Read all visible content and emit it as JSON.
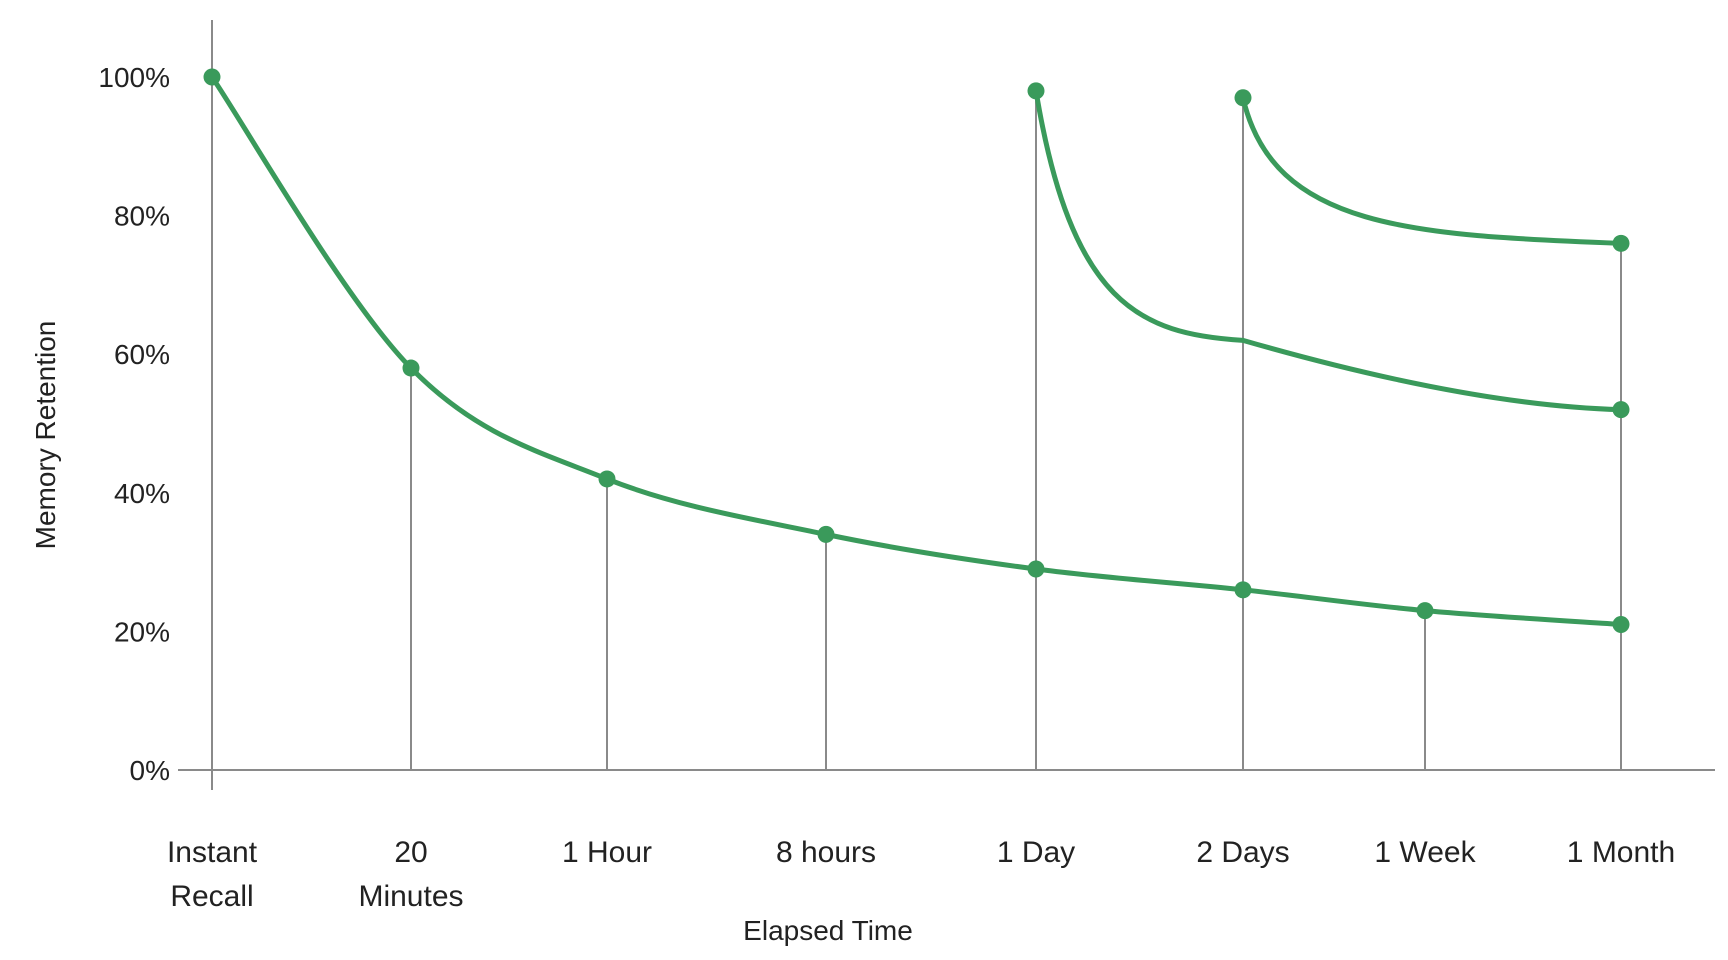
{
  "chart_data": {
    "type": "line",
    "xlabel": "Elapsed Time",
    "ylabel": "Memory Retention",
    "y_ticks": [
      "0%",
      "20%",
      "40%",
      "60%",
      "80%",
      "100%"
    ],
    "ylim": [
      0,
      100
    ],
    "categories": [
      [
        "Instant",
        "Recall"
      ],
      [
        "20",
        "Minutes"
      ],
      [
        "1 Hour"
      ],
      [
        "8 hours"
      ],
      [
        "1 Day"
      ],
      [
        "2 Days"
      ],
      [
        "1 Week"
      ],
      [
        "1 Month"
      ]
    ],
    "grid": false,
    "series": [
      {
        "color": "#3a9a5b",
        "points": [
          {
            "x": 0,
            "y": 100
          },
          {
            "x": 1,
            "y": 58
          },
          {
            "x": 2,
            "y": 42
          },
          {
            "x": 3,
            "y": 34
          },
          {
            "x": 4,
            "y": 29
          },
          {
            "x": 5,
            "y": 26
          },
          {
            "x": 6,
            "y": 23
          },
          {
            "x": 7,
            "y": 21
          }
        ]
      },
      {
        "color": "#3a9a5b",
        "points": [
          {
            "x": 4,
            "y": 98
          },
          {
            "x": 5,
            "y": 62
          },
          {
            "x": 7,
            "y": 52
          }
        ]
      },
      {
        "color": "#3a9a5b",
        "points": [
          {
            "x": 5,
            "y": 97
          },
          {
            "x": 7,
            "y": 76
          }
        ]
      }
    ],
    "drop_lines": [
      {
        "x": 0,
        "y": 100
      },
      {
        "x": 1,
        "y": 58
      },
      {
        "x": 2,
        "y": 42
      },
      {
        "x": 3,
        "y": 34
      },
      {
        "x": 4,
        "y": 98
      },
      {
        "x": 5,
        "y": 97
      },
      {
        "x": 6,
        "y": 23
      },
      {
        "x": 7,
        "y": 76
      }
    ],
    "marker_points": [
      {
        "x": 0,
        "y": 100
      },
      {
        "x": 1,
        "y": 58
      },
      {
        "x": 2,
        "y": 42
      },
      {
        "x": 3,
        "y": 34
      },
      {
        "x": 4,
        "y": 29
      },
      {
        "x": 5,
        "y": 26
      },
      {
        "x": 6,
        "y": 23
      },
      {
        "x": 7,
        "y": 21
      },
      {
        "x": 4,
        "y": 98
      },
      {
        "x": 7,
        "y": 52
      },
      {
        "x": 5,
        "y": 97
      },
      {
        "x": 7,
        "y": 76
      }
    ]
  }
}
